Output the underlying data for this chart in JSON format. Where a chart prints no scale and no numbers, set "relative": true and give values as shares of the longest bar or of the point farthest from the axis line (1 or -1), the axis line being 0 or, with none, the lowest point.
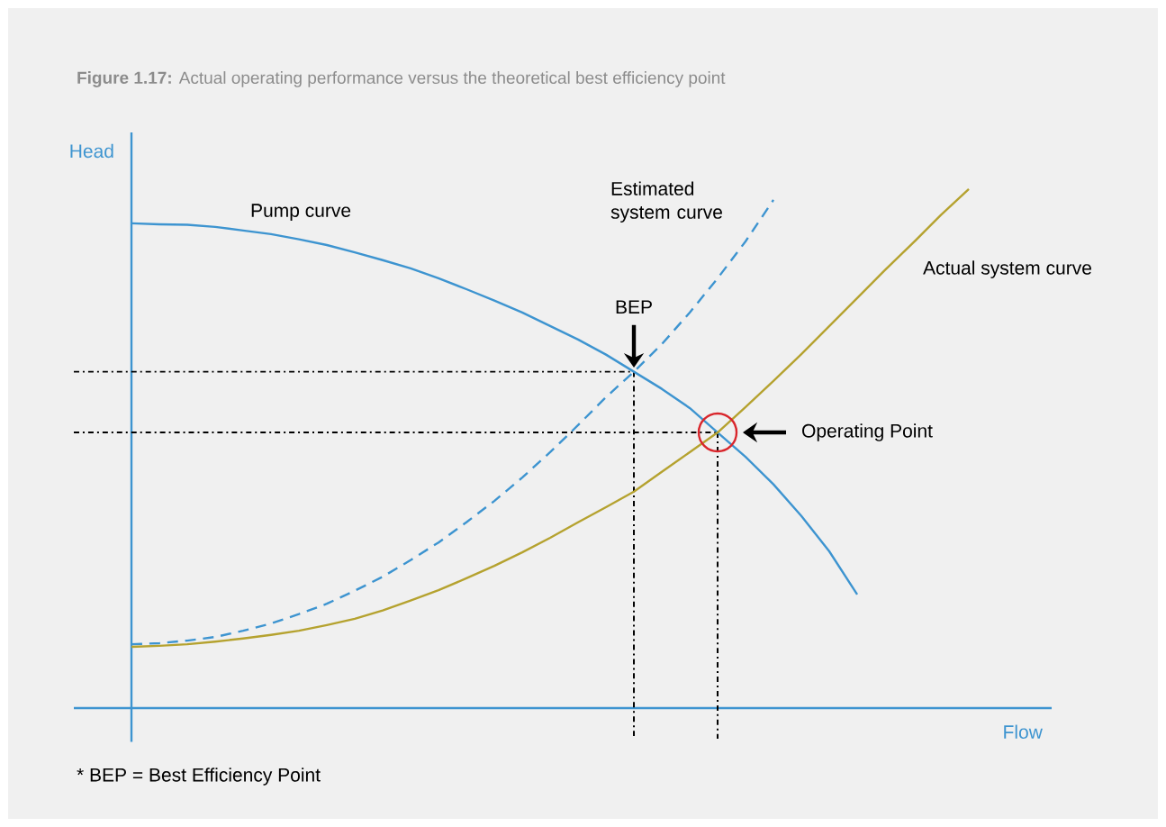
{
  "chart_data": {
    "type": "line",
    "relative": true,
    "title": "**Figure 1.17:** Actual operating performance versus the theoretical best efficiency point",
    "xlabel": "Flow",
    "ylabel": "Head",
    "categories": [
      null,
      null,
      null,
      null,
      null,
      null,
      null,
      null,
      null,
      null,
      null,
      null,
      null,
      null,
      null,
      null,
      null,
      null,
      null,
      null,
      null,
      null,
      null,
      null,
      null,
      null,
      null,
      null,
      null,
      null,
      null
    ],
    "series": [
      {
        "name": "Pump curve",
        "color": "#3d94d0",
        "line_style": "solid",
        "values": [
          0.934,
          0.932,
          0.931,
          0.927,
          0.92,
          0.913,
          0.903,
          0.892,
          0.878,
          0.863,
          0.847,
          0.828,
          0.807,
          0.785,
          0.762,
          0.736,
          0.71,
          0.681,
          0.648,
          0.615,
          0.578,
          0.531,
          0.484,
          0.431,
          0.37,
          0.302,
          0.219,
          null,
          null,
          null,
          null
        ]
      },
      {
        "name": "Estimated system curve",
        "color": "#3d94d0",
        "line_style": "dashed",
        "values": [
          0.123,
          0.125,
          0.13,
          0.137,
          0.149,
          0.163,
          0.181,
          0.201,
          0.226,
          0.253,
          0.285,
          0.319,
          0.358,
          0.399,
          0.444,
          0.493,
          0.545,
          0.599,
          0.648,
          0.701,
          0.762,
          0.828,
          0.899,
          0.979,
          null,
          null,
          null,
          null,
          null,
          null,
          null
        ]
      },
      {
        "name": "Actual system curve",
        "color": "#b5a22f",
        "line_style": "solid",
        "values": [
          0.118,
          0.12,
          0.123,
          0.128,
          0.134,
          0.141,
          0.149,
          0.16,
          0.172,
          0.188,
          0.207,
          0.227,
          0.25,
          0.274,
          0.3,
          0.328,
          0.358,
          0.387,
          0.417,
          0.455,
          0.493,
          0.531,
          0.58,
          0.63,
          0.682,
          0.736,
          0.79,
          0.844,
          0.896,
          0.95,
          1
        ]
      }
    ],
    "ref_lines": [
      {
        "axis": "y",
        "value": 0.648,
        "line_style": "dashdot",
        "color": "#000000"
      },
      {
        "axis": "y",
        "value": 0.531,
        "line_style": "dashdot",
        "color": "#000000"
      }
    ],
    "annotations": [
      "BEP",
      "Operating Point",
      "* BEP = Best Efficiency Point"
    ]
  }
}
